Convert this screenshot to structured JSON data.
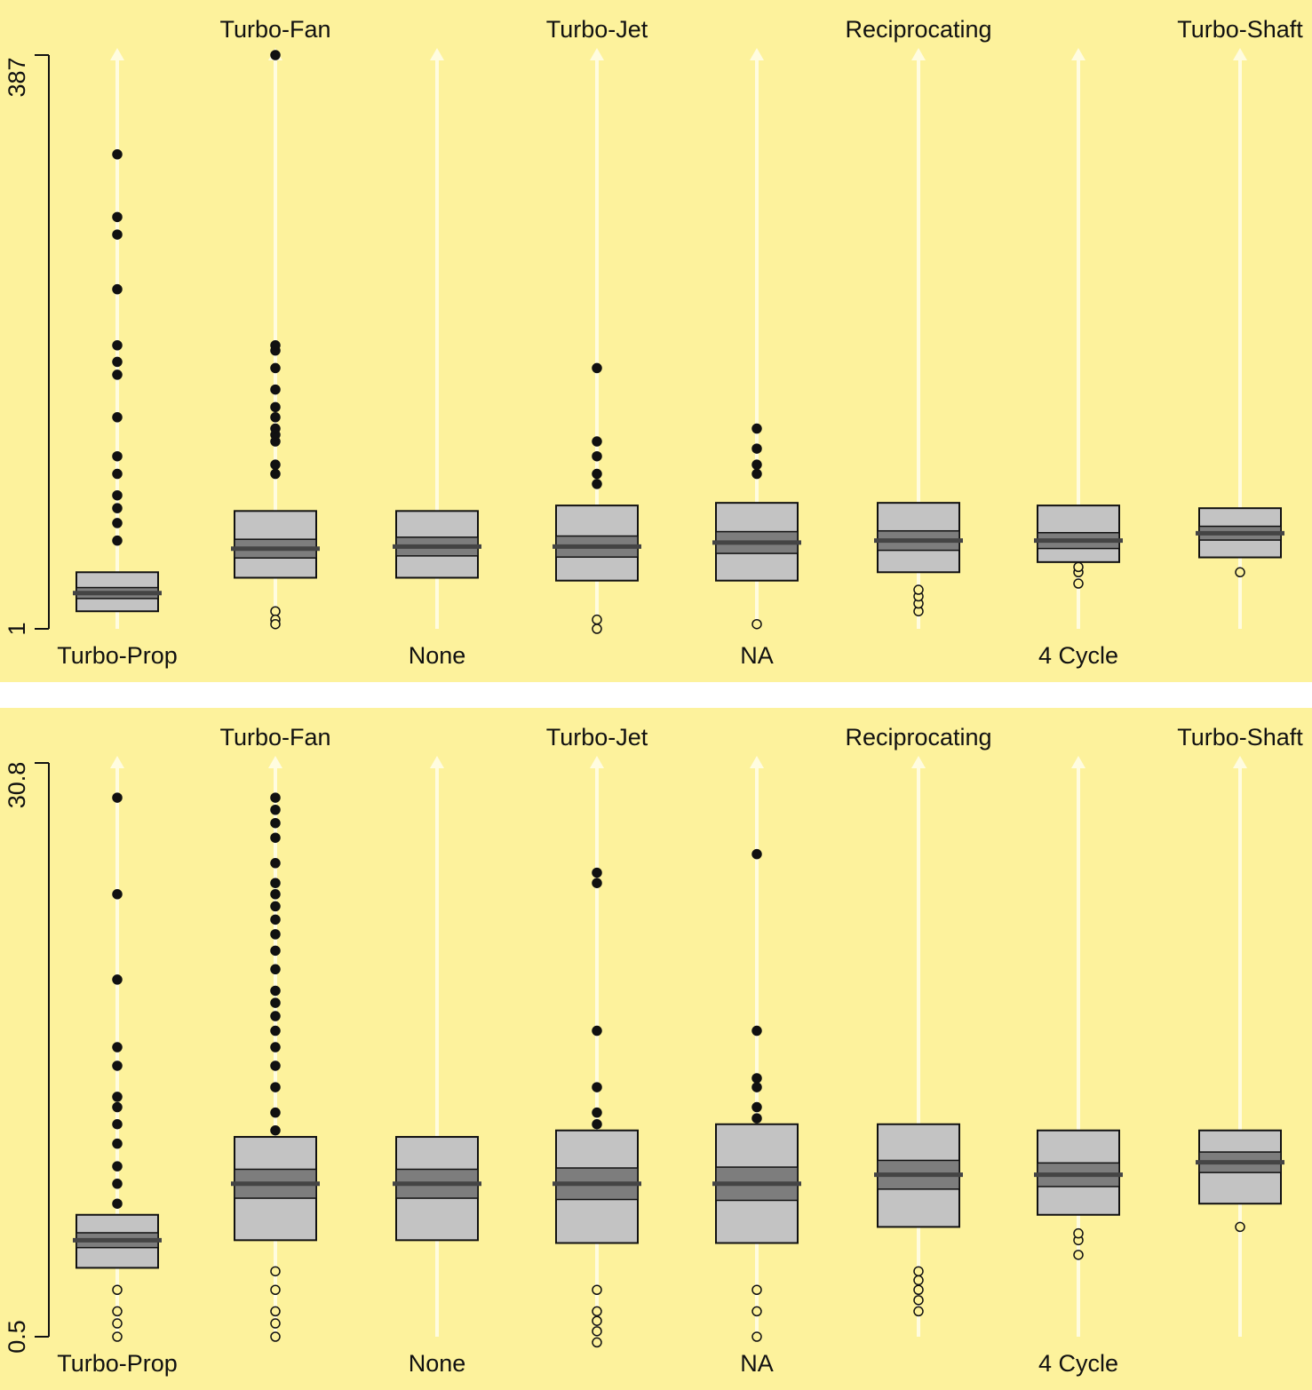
{
  "chart_data": [
    {
      "type": "boxplot",
      "scale": "log",
      "ylim": [
        1,
        387
      ],
      "y_tick_labels": [
        "1",
        "387"
      ],
      "categories_bottom": [
        "Turbo-Prop",
        "None",
        "NA",
        "4 Cycle"
      ],
      "categories_top": [
        "Turbo-Fan",
        "Turbo-Jet",
        "Reciprocating",
        "Turbo-Shaft"
      ],
      "categories": [
        "Turbo-Prop",
        "Turbo-Fan",
        "None",
        "Turbo-Jet",
        "NA",
        "Reciprocating",
        "4 Cycle",
        "Turbo-Shaft"
      ],
      "boxes": [
        {
          "name": "Turbo-Prop",
          "q1": 1.2,
          "median": 1.45,
          "q3": 1.8,
          "whisker_low": 1.0,
          "whisker_high": 2.4,
          "outliers": [
            2.5,
            3,
            3.5,
            4,
            5,
            6,
            9,
            14,
            16,
            19,
            34,
            60,
            72,
            138
          ]
        },
        {
          "name": "Turbo-Fan",
          "q1": 1.7,
          "median": 2.3,
          "q3": 3.4,
          "whisker_low": 1.0,
          "whisker_high": 6.5,
          "outliers": [
            7,
            7.5,
            8,
            9,
            10,
            12,
            15,
            18,
            19,
            5.5,
            5,
            1.2,
            1.1,
            1.05,
            387
          ]
        },
        {
          "name": "None",
          "q1": 1.7,
          "median": 2.35,
          "q3": 3.4,
          "whisker_low": 1.6,
          "whisker_high": 3.4,
          "outliers": []
        },
        {
          "name": "Turbo-Jet",
          "q1": 1.65,
          "median": 2.35,
          "q3": 3.6,
          "whisker_low": 1.05,
          "whisker_high": 4.2,
          "outliers": [
            4.5,
            5,
            6,
            7,
            1.1,
            1.0,
            15
          ]
        },
        {
          "name": "NA",
          "q1": 1.65,
          "median": 2.45,
          "q3": 3.7,
          "whisker_low": 1.1,
          "whisker_high": 4.8,
          "outliers": [
            5,
            5.5,
            6.5,
            1.05,
            8
          ]
        },
        {
          "name": "Reciprocating",
          "q1": 1.8,
          "median": 2.5,
          "q3": 3.7,
          "whisker_low": 1.8,
          "whisker_high": 3.7,
          "outliers": [
            1.2,
            1.3,
            1.4,
            1.5
          ]
        },
        {
          "name": "4 Cycle",
          "q1": 2.0,
          "median": 2.5,
          "q3": 3.6,
          "whisker_low": 2.0,
          "whisker_high": 3.6,
          "outliers": [
            1.6,
            1.8,
            1.9
          ]
        },
        {
          "name": "Turbo-Shaft",
          "q1": 2.1,
          "median": 2.7,
          "q3": 3.5,
          "whisker_low": 2.1,
          "whisker_high": 3.5,
          "outliers": [
            1.8
          ]
        }
      ]
    },
    {
      "type": "boxplot",
      "scale": "log",
      "ylim": [
        0.5,
        30.8
      ],
      "y_tick_labels": [
        "0.5",
        "30.8"
      ],
      "categories_bottom": [
        "Turbo-Prop",
        "None",
        "NA",
        "4 Cycle"
      ],
      "categories_top": [
        "Turbo-Fan",
        "Turbo-Jet",
        "Reciprocating",
        "Turbo-Shaft"
      ],
      "categories": [
        "Turbo-Prop",
        "Turbo-Fan",
        "None",
        "Turbo-Jet",
        "NA",
        "Reciprocating",
        "4 Cycle",
        "Turbo-Shaft"
      ],
      "boxes": [
        {
          "name": "Turbo-Prop",
          "q1": 0.82,
          "median": 1.0,
          "q3": 1.2,
          "whisker_low": 0.52,
          "whisker_high": 1.2,
          "outliers": [
            0.5,
            0.55,
            0.6,
            0.7,
            1.3,
            1.5,
            1.7,
            2.0,
            2.3,
            2.6,
            2.8,
            3.5,
            4.0,
            6.5,
            12,
            24
          ]
        },
        {
          "name": "Turbo-Fan",
          "q1": 1.0,
          "median": 1.5,
          "q3": 2.1,
          "whisker_low": 0.5,
          "whisker_high": 2.1,
          "outliers": [
            0.5,
            0.55,
            0.6,
            0.7,
            0.8,
            2.2,
            2.5,
            3.0,
            3.5,
            4.0,
            4.5,
            5.0,
            5.5,
            6.0,
            7.0,
            8.0,
            9.0,
            10,
            11,
            12,
            13,
            15,
            18,
            20,
            22,
            24
          ]
        },
        {
          "name": "None",
          "q1": 1.0,
          "median": 1.5,
          "q3": 2.1,
          "whisker_low": 1.0,
          "whisker_high": 2.1,
          "outliers": []
        },
        {
          "name": "Turbo-Jet",
          "q1": 0.98,
          "median": 1.5,
          "q3": 2.2,
          "whisker_low": 0.5,
          "whisker_high": 2.2,
          "outliers": [
            0.48,
            0.52,
            0.56,
            0.6,
            0.7,
            2.3,
            2.5,
            3.0,
            4.5,
            13,
            14
          ]
        },
        {
          "name": "NA",
          "q1": 0.98,
          "median": 1.5,
          "q3": 2.3,
          "whisker_low": 0.55,
          "whisker_high": 2.3,
          "outliers": [
            0.5,
            0.6,
            0.7,
            2.4,
            2.6,
            3.0,
            3.2,
            4.5,
            16
          ]
        },
        {
          "name": "Reciprocating",
          "q1": 1.1,
          "median": 1.6,
          "q3": 2.3,
          "whisker_low": 1.1,
          "whisker_high": 2.3,
          "outliers": [
            0.6,
            0.65,
            0.7,
            0.75,
            0.8
          ]
        },
        {
          "name": "4 Cycle",
          "q1": 1.2,
          "median": 1.6,
          "q3": 2.2,
          "whisker_low": 1.2,
          "whisker_high": 2.2,
          "outliers": [
            0.9,
            1.0,
            1.05
          ]
        },
        {
          "name": "Turbo-Shaft",
          "q1": 1.3,
          "median": 1.75,
          "q3": 2.2,
          "whisker_low": 1.3,
          "whisker_high": 2.2,
          "outliers": [
            1.1
          ]
        }
      ]
    }
  ]
}
